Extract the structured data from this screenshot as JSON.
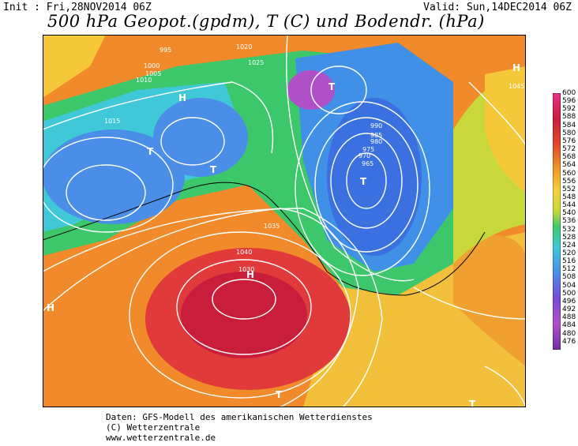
{
  "header": {
    "init": "Init : Fri,28NOV2014 06Z",
    "valid": "Valid: Sun,14DEC2014 06Z",
    "title": "500 hPa Geopot.(gpdm), T (C) und Bodendr. (hPa)"
  },
  "legend": {
    "ticks": [
      "600",
      "596",
      "592",
      "588",
      "584",
      "580",
      "576",
      "572",
      "568",
      "564",
      "560",
      "556",
      "552",
      "548",
      "544",
      "540",
      "536",
      "532",
      "528",
      "524",
      "520",
      "516",
      "512",
      "508",
      "504",
      "500",
      "496",
      "492",
      "488",
      "484",
      "480",
      "476"
    ]
  },
  "pressure_labels": [
    {
      "text": "995"
    },
    {
      "text": "1000"
    },
    {
      "text": "1005"
    },
    {
      "text": "1010"
    },
    {
      "text": "1015"
    },
    {
      "text": "1020"
    },
    {
      "text": "1025"
    },
    {
      "text": "1030"
    },
    {
      "text": "1035"
    },
    {
      "text": "1040"
    },
    {
      "text": "1045"
    },
    {
      "text": "990"
    },
    {
      "text": "985"
    },
    {
      "text": "980"
    },
    {
      "text": "975"
    },
    {
      "text": "970"
    },
    {
      "text": "965"
    }
  ],
  "systems": [
    {
      "text": "H"
    },
    {
      "text": "H"
    },
    {
      "text": "H"
    },
    {
      "text": "H"
    },
    {
      "text": "T"
    },
    {
      "text": "T"
    },
    {
      "text": "T"
    },
    {
      "text": "T"
    },
    {
      "text": "T"
    },
    {
      "text": "T"
    }
  ],
  "footer": {
    "line1": "Daten: GFS-Modell des amerikanischen Wetterdienstes",
    "line2": "(C) Wetterzentrale",
    "line3": "www.wetterzentrale.de"
  }
}
